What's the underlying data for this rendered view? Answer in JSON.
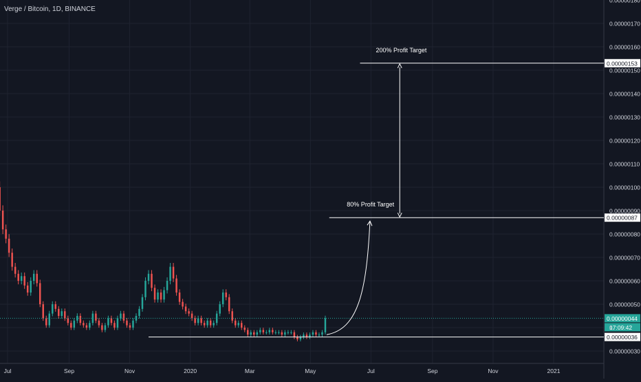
{
  "header": {
    "title": "Verge / Bitcoin, 1D, BINANCE"
  },
  "chart_data": {
    "type": "candlestick",
    "title": "Verge / Bitcoin, 1D, BINANCE",
    "xlabel": "",
    "ylabel": "",
    "ylim": [
      2.5e-07,
      1.8e-06
    ],
    "x_ticks": [
      "Jul",
      "Sep",
      "Nov",
      "2020",
      "Mar",
      "May",
      "Jul",
      "Sep",
      "Nov",
      "2021"
    ],
    "y_ticks": [
      "0.00000180",
      "0.00000170",
      "0.00000160",
      "0.00000150",
      "0.00000140",
      "0.00000130",
      "0.00000120",
      "0.00000110",
      "0.00000100",
      "0.00000090",
      "0.00000080",
      "0.00000070",
      "0.00000060",
      "0.00000050",
      "0.00000040",
      "0.00000030"
    ],
    "grid": true,
    "price_series": {
      "name": "XVG/BTC",
      "start": "2019-06-20",
      "end": "2020-05-16",
      "close": [
        1e-06,
        9e-07,
        8.2e-07,
        7.8e-07,
        7.2e-07,
        6.6e-07,
        6.3e-07,
        6e-07,
        6.2e-07,
        5.8e-07,
        5.5e-07,
        6e-07,
        6.3e-07,
        5.9e-07,
        5e-07,
        4.4e-07,
        4.1e-07,
        4.6e-07,
        5e-07,
        4.8e-07,
        4.5e-07,
        4.7e-07,
        4.4e-07,
        4.2e-07,
        4e-07,
        4.3e-07,
        4.5e-07,
        4.2e-07,
        4.1e-07,
        4e-07,
        4.2e-07,
        4.6e-07,
        4.3e-07,
        4.1e-07,
        3.9e-07,
        4.1e-07,
        4.4e-07,
        4.2e-07,
        4e-07,
        4.4e-07,
        4.6e-07,
        4.3e-07,
        4.1e-07,
        4e-07,
        4.3e-07,
        4.5e-07,
        4.8e-07,
        5.3e-07,
        6e-07,
        6.3e-07,
        5.7e-07,
        5.2e-07,
        5.5e-07,
        5.2e-07,
        5.6e-07,
        6e-07,
        6.6e-07,
        6.1e-07,
        5.5e-07,
        5.1e-07,
        4.9e-07,
        4.7e-07,
        4.6e-07,
        4.4e-07,
        4.2e-07,
        4.4e-07,
        4.2e-07,
        4.1e-07,
        4.3e-07,
        4.1e-07,
        4.2e-07,
        4.6e-07,
        5e-07,
        5.5e-07,
        5.3e-07,
        4.7e-07,
        4.3e-07,
        4.1e-07,
        4.2e-07,
        4e-07,
        3.9e-07,
        3.7e-07,
        3.8e-07,
        3.7e-07,
        3.8e-07,
        3.9e-07,
        3.8e-07,
        3.8e-07,
        3.9e-07,
        3.8e-07,
        3.8e-07,
        3.8e-07,
        3.7e-07,
        3.8e-07,
        3.8e-07,
        3.8e-07,
        3.6e-07,
        3.5e-07,
        3.6e-07,
        3.7e-07,
        3.6e-07,
        3.7e-07,
        3.8e-07,
        3.7e-07,
        3.7e-07,
        3.8e-07,
        4.4e-07
      ]
    },
    "last_price": "0.00000044",
    "last_price_time": "17:09:42",
    "partial_label": "0.",
    "levels": [
      {
        "label": "200% Profit Target",
        "value": "0.00000153",
        "start": "2020-06-20"
      },
      {
        "label": "80% Profit Target",
        "value": "0.00000087",
        "start": "2020-05-20"
      },
      {
        "label": "",
        "value": "0.00000036",
        "start": "2019-11-20"
      }
    ],
    "colors": {
      "background": "#131722",
      "grid": "#1f2330",
      "up": "#26a69a",
      "down": "#ef5350",
      "text": "#d1d4dc",
      "annotation": "#ffffff",
      "price_line": "#26a69a"
    }
  }
}
